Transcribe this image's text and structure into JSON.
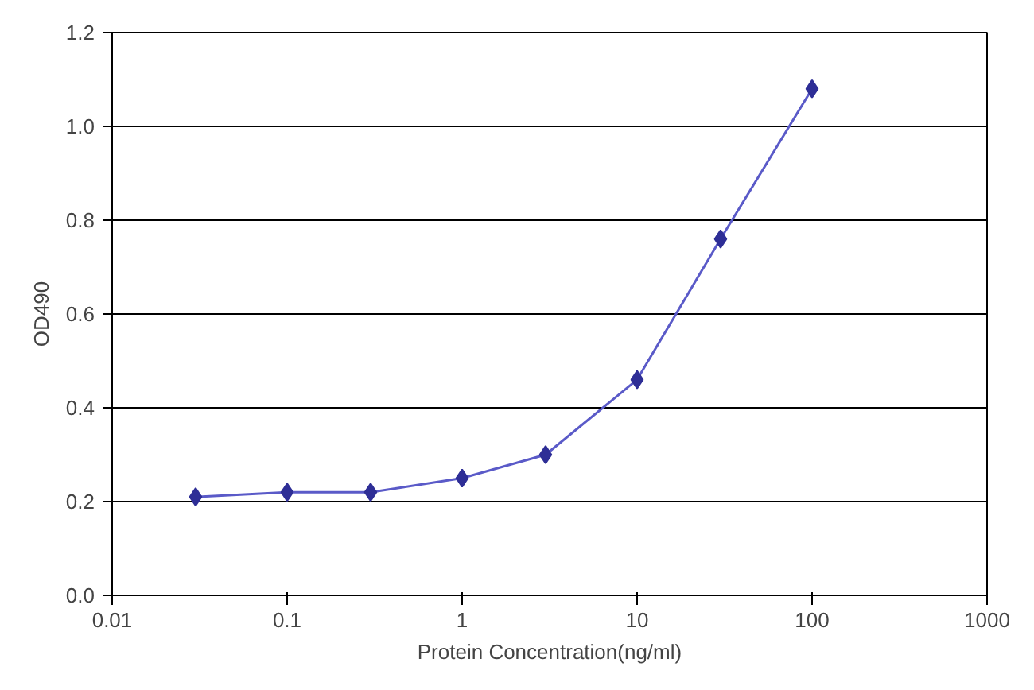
{
  "chart_data": {
    "type": "line",
    "xlabel": "Protein Concentration(ng/ml)",
    "ylabel": "OD490",
    "x": [
      0.03,
      0.1,
      0.3,
      1,
      3,
      10,
      30,
      100
    ],
    "series": [
      {
        "color": "#2e2e96",
        "values": [
          0.21,
          0.22,
          0.22,
          0.25,
          0.3,
          0.46,
          0.76,
          1.08
        ]
      }
    ],
    "log": "x",
    "marker": "diamond",
    "line_style": "solid",
    "grid": "y",
    "xlim": [
      0.01,
      1000
    ],
    "xticks": [
      0.01,
      0.1,
      1,
      10,
      100,
      1000
    ],
    "ylim": [
      0,
      1.2
    ],
    "yticks": [
      {
        "value": 0,
        "label": "0.0"
      },
      {
        "value": 0.2,
        "label": "0.2"
      },
      {
        "value": 0.4,
        "label": "0.4"
      },
      {
        "value": 0.6,
        "label": "0.6"
      },
      {
        "value": 0.8,
        "label": "0.8"
      },
      {
        "value": 1.0,
        "label": "1.0"
      },
      {
        "value": 1.2,
        "label": "1.2"
      }
    ]
  }
}
